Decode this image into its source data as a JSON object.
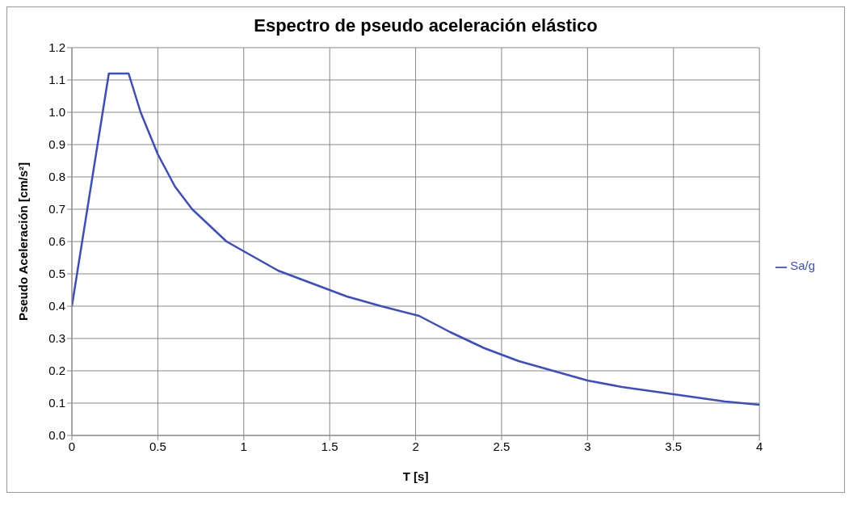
{
  "chart_data": {
    "type": "line",
    "title": "Espectro de pseudo aceleración elástico",
    "xlabel": "T [s]",
    "ylabel": "Pseudo Aceleración  [cm/s²]",
    "x": [
      0,
      0.215,
      0.33,
      0.4,
      0.5,
      0.6,
      0.7,
      0.8,
      0.9,
      1.0,
      1.2,
      1.4,
      1.6,
      1.8,
      2.02,
      2.2,
      2.4,
      2.6,
      2.8,
      3.0,
      3.2,
      3.4,
      3.6,
      3.8,
      4.0
    ],
    "series": [
      {
        "name": "Sa/g",
        "color": "#3b4cc8",
        "values": [
          0.4,
          1.12,
          1.12,
          1.0,
          0.87,
          0.77,
          0.7,
          0.65,
          0.6,
          0.57,
          0.51,
          0.47,
          0.43,
          0.4,
          0.37,
          0.32,
          0.27,
          0.23,
          0.2,
          0.17,
          0.15,
          0.135,
          0.12,
          0.105,
          0.095
        ]
      }
    ],
    "xlim": [
      0,
      4
    ],
    "xticks": [
      0,
      0.5,
      1,
      1.5,
      2,
      2.5,
      3,
      3.5,
      4
    ],
    "ylim": [
      0,
      1.2
    ],
    "yticks": [
      {
        "value": 0,
        "label": "0.0"
      },
      0.1,
      0.2,
      0.3,
      0.4,
      0.5,
      0.6,
      0.7,
      0.8,
      0.9,
      {
        "value": 1,
        "label": "1.0"
      },
      1.1,
      1.2
    ],
    "grid": true,
    "legend": "right",
    "marker": "none",
    "line_style": "solid"
  }
}
